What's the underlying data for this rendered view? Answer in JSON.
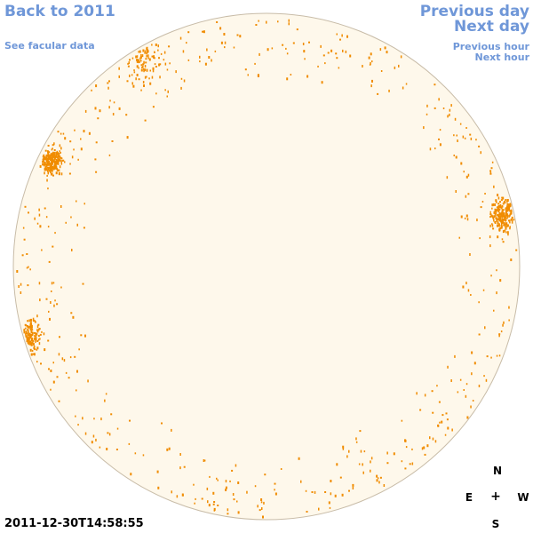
{
  "nav": {
    "back": "Back to 2011",
    "facular": "See facular data",
    "previous_day": "Previous day",
    "next_day": "Next day",
    "previous_hour": "Previous hour",
    "next_hour": "Next hour"
  },
  "compass": {
    "north": "N",
    "east": "E",
    "center": "+",
    "west": "W",
    "south": "S"
  },
  "timestamp": "2011-12-30T14:58:55",
  "colors": {
    "disk_fill": "#fef8eb",
    "disk_outline": "#c8bca8",
    "feature": "#f08c00",
    "link": "#6f97d8"
  },
  "disk_features": {
    "description_note": "",
    "clusters": [
      {
        "lon": -70,
        "lat": 25,
        "density": 0.9,
        "spread": 8
      },
      {
        "lon": -80,
        "lat": -16,
        "density": 0.7,
        "spread": 12
      },
      {
        "lon": 72,
        "lat": 12,
        "density": 0.8,
        "spread": 10
      },
      {
        "lon": -60,
        "lat": 55,
        "density": 0.4,
        "spread": 14
      }
    ]
  }
}
